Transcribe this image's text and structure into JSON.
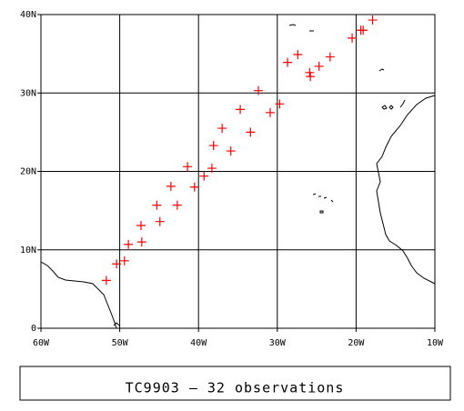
{
  "chart_data": {
    "type": "scatter",
    "title": "TC9903 — 32 observations",
    "x": [
      -51.7,
      -50.4,
      -49.4,
      -48.9,
      -47.2,
      -47.3,
      -44.9,
      -45.3,
      -42.7,
      -43.5,
      -40.5,
      -39.3,
      -41.4,
      -38.3,
      -38.1,
      -37.0,
      -35.9,
      -33.4,
      -34.7,
      -32.4,
      -30.9,
      -29.7,
      -28.7,
      -27.4,
      -25.9,
      -25.8,
      -24.7,
      -23.3,
      -20.5,
      -19.4,
      -19.1,
      -17.9
    ],
    "values": [
      6.1,
      8.2,
      8.6,
      10.7,
      11.0,
      13.1,
      13.6,
      15.7,
      15.7,
      18.1,
      18.0,
      19.4,
      20.6,
      20.4,
      23.3,
      25.5,
      22.6,
      25.0,
      27.9,
      30.3,
      27.5,
      28.6,
      33.9,
      34.9,
      32.6,
      32.1,
      33.4,
      34.6,
      37.0,
      38.0,
      38.0,
      39.3
    ],
    "color": "#ff0000",
    "xlim": [
      -60,
      -10
    ],
    "xticks": [
      {
        "value": -60,
        "label": "60W"
      },
      {
        "value": -50,
        "label": "50W"
      },
      {
        "value": -40,
        "label": "40W"
      },
      {
        "value": -30,
        "label": "30W"
      },
      {
        "value": -20,
        "label": "20W"
      },
      {
        "value": -10,
        "label": "10W"
      }
    ],
    "ylim": [
      0,
      40
    ],
    "yticks": [
      0,
      {
        "value": 10,
        "label": "10N"
      },
      {
        "value": 20,
        "label": "20N"
      },
      {
        "value": 30,
        "label": "30N"
      },
      {
        "value": 40,
        "label": "40N"
      }
    ],
    "grid": true
  }
}
